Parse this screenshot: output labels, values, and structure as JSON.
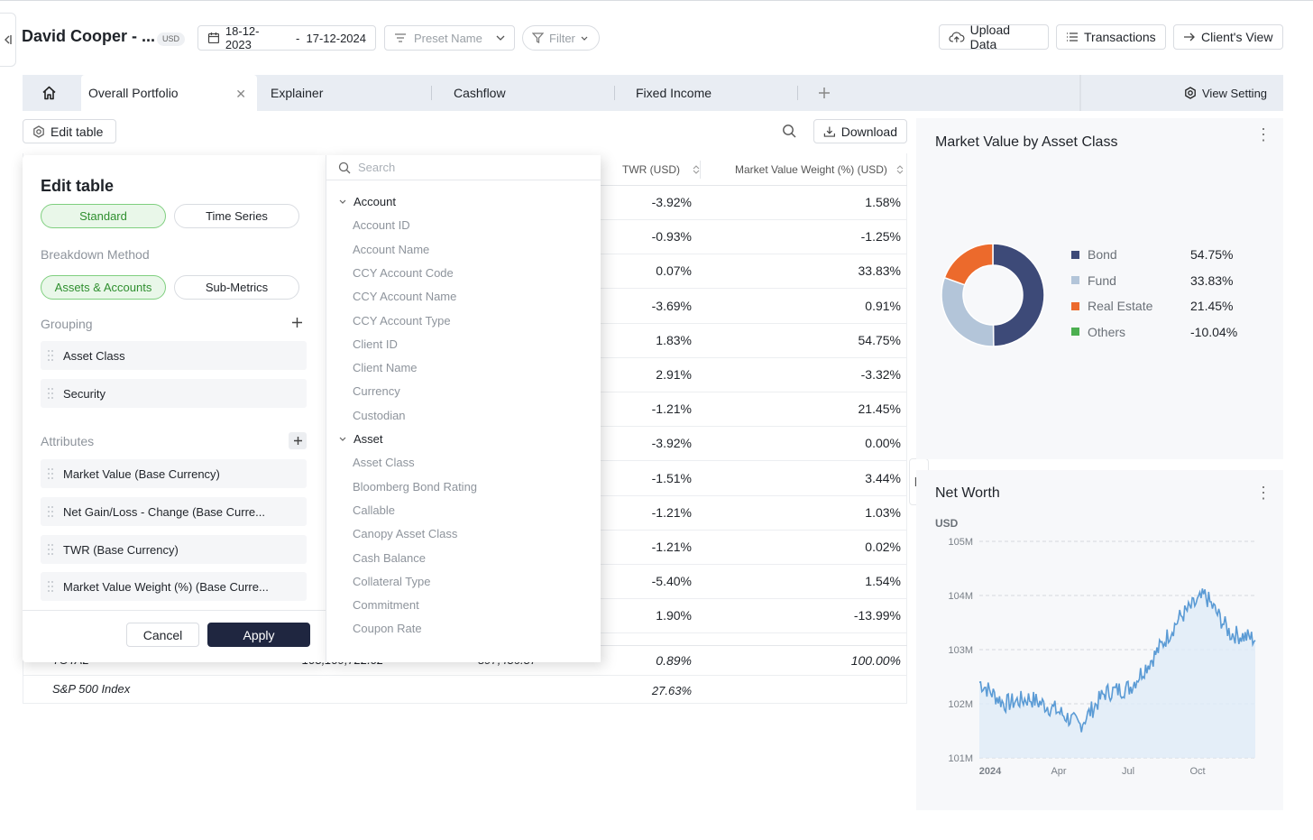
{
  "header": {
    "client_name": "David Cooper - ...",
    "currency_badge": "USD",
    "date_from": "18-12-2023",
    "date_to": "-  17-12-2024",
    "preset_placeholder": "Preset Name",
    "filter_label": "Filter",
    "upload_label": "Upload Data",
    "transactions_label": "Transactions",
    "client_view_label": "Client's View"
  },
  "tabs": {
    "items": [
      "Overall Portfolio",
      "Explainer",
      "Cashflow",
      "Fixed Income"
    ],
    "active": "Overall Portfolio",
    "view_setting": "View Setting"
  },
  "toolbar": {
    "edit_table": "Edit table",
    "download": "Download"
  },
  "table": {
    "headers": [
      "TWR (USD)",
      "Market Value Weight (%) (USD)"
    ],
    "rows": [
      [
        "-3.92%",
        "1.58%"
      ],
      [
        "-0.93%",
        "-1.25%"
      ],
      [
        "0.07%",
        "33.83%"
      ],
      [
        "-3.69%",
        "0.91%"
      ],
      [
        "1.83%",
        "54.75%"
      ],
      [
        "2.91%",
        "-3.32%"
      ],
      [
        "-1.21%",
        "21.45%"
      ],
      [
        "-3.92%",
        "0.00%"
      ],
      [
        "-1.51%",
        "3.44%"
      ],
      [
        "-1.21%",
        "1.03%"
      ],
      [
        "-1.21%",
        "0.02%"
      ],
      [
        "-5.40%",
        "1.54%"
      ],
      [
        "1.90%",
        "-13.99%"
      ]
    ],
    "total_label": "TOTAL",
    "total_col1": "103,109,722.02",
    "total_col2": "897,436.37",
    "total_twr": "0.89%",
    "total_weight": "100.00%",
    "index_label": "S&P 500 Index",
    "index_twr": "27.63%"
  },
  "edit_panel": {
    "title": "Edit table",
    "mode_standard": "Standard",
    "mode_timeseries": "Time Series",
    "breakdown_label": "Breakdown Method",
    "breakdown_assets": "Assets & Accounts",
    "breakdown_sub": "Sub-Metrics",
    "grouping_label": "Grouping",
    "grouping_items": [
      "Asset Class",
      "Security"
    ],
    "attributes_label": "Attributes",
    "attribute_items": [
      "Market Value (Base Currency)",
      "Net Gain/Loss - Change (Base Curre...",
      "TWR (Base Currency)",
      "Market Value Weight (%) (Base Curre..."
    ],
    "cancel": "Cancel",
    "apply": "Apply"
  },
  "field_picker": {
    "search_placeholder": "Search",
    "groups": [
      {
        "name": "Account",
        "items": [
          "Account ID",
          "Account Name",
          "CCY Account Code",
          "CCY Account Name",
          "CCY Account Type",
          "Client ID",
          "Client Name",
          "Currency",
          "Custodian"
        ]
      },
      {
        "name": "Asset",
        "items": [
          "Asset Class",
          "Bloomberg Bond Rating",
          "Callable",
          "Canopy Asset Class",
          "Cash Balance",
          "Collateral Type",
          "Commitment",
          "Coupon Rate"
        ]
      }
    ]
  },
  "donut_card": {
    "title": "Market Value by Asset Class",
    "legend": [
      {
        "name": "Bond",
        "value": "54.75%",
        "color": "#3d4a78"
      },
      {
        "name": "Fund",
        "value": "33.83%",
        "color": "#b3c5d9"
      },
      {
        "name": "Real Estate",
        "value": "21.45%",
        "color": "#ec6a2c"
      },
      {
        "name": "Others",
        "value": "-10.04%",
        "color": "#4caf50"
      }
    ]
  },
  "networth_card": {
    "title": "Net Worth",
    "unit": "USD",
    "y_ticks": [
      "105M",
      "104M",
      "103M",
      "102M",
      "101M"
    ],
    "x_ticks": [
      "2024",
      "Apr",
      "Jul",
      "Oct"
    ]
  },
  "chart_data": [
    {
      "type": "pie",
      "title": "Market Value by Asset Class",
      "categories": [
        "Bond",
        "Fund",
        "Real Estate",
        "Others"
      ],
      "values": [
        54.75,
        33.83,
        21.45,
        -10.04
      ]
    },
    {
      "type": "area",
      "title": "Net Worth",
      "ylabel": "USD",
      "ylim": [
        101,
        105
      ],
      "x": [
        "2024-01",
        "2024-02",
        "2024-03",
        "2024-04",
        "2024-05",
        "2024-06",
        "2024-07",
        "2024-08",
        "2024-09",
        "2024-10",
        "2024-11",
        "2024-12"
      ],
      "series": [
        {
          "values": [
            102.4,
            102.0,
            102.1,
            101.9,
            101.6,
            102.2,
            102.3,
            102.9,
            103.6,
            104.0,
            103.3,
            103.2
          ]
        }
      ]
    }
  ]
}
